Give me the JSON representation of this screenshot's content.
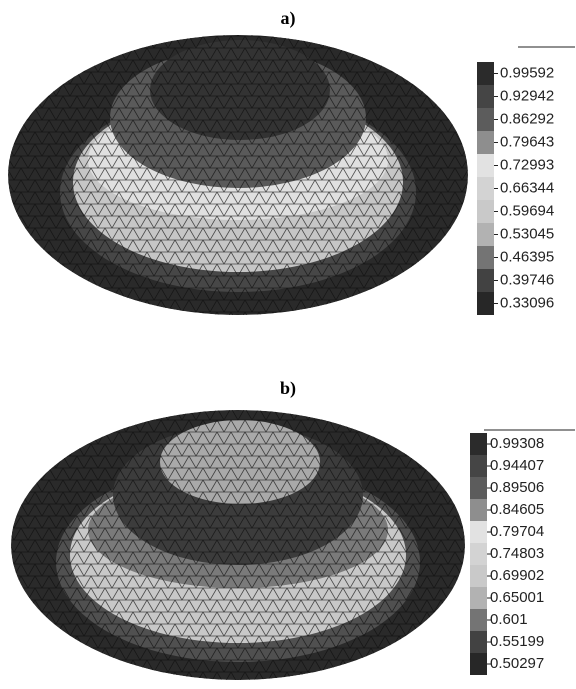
{
  "panels": [
    {
      "label": "a)",
      "colorbar": {
        "ticks": [
          "0.99592",
          "0.92942",
          "0.86292",
          "0.79643",
          "0.72993",
          "0.66344",
          "0.59694",
          "0.53045",
          "0.46395",
          "0.39746",
          "0.33096"
        ],
        "colors": [
          "#2b2b2b",
          "#454545",
          "#5c5c5c",
          "#8e8e8e",
          "#e2e2e2",
          "#d3d3d3",
          "#c9c9c9",
          "#b2b2b2",
          "#747474",
          "#424242",
          "#272727"
        ]
      }
    },
    {
      "label": "b)",
      "colorbar": {
        "ticks": [
          "0.99308",
          "0.94407",
          "0.89506",
          "0.84605",
          "0.79704",
          "0.74803",
          "0.69902",
          "0.65001",
          "0.601",
          "0.55199",
          "0.50297"
        ],
        "colors": [
          "#2b2b2b",
          "#454545",
          "#5c5c5c",
          "#8e8e8e",
          "#e2e2e2",
          "#d3d3d3",
          "#c9c9c9",
          "#b2b2b2",
          "#747474",
          "#424242",
          "#272727"
        ]
      }
    }
  ]
}
